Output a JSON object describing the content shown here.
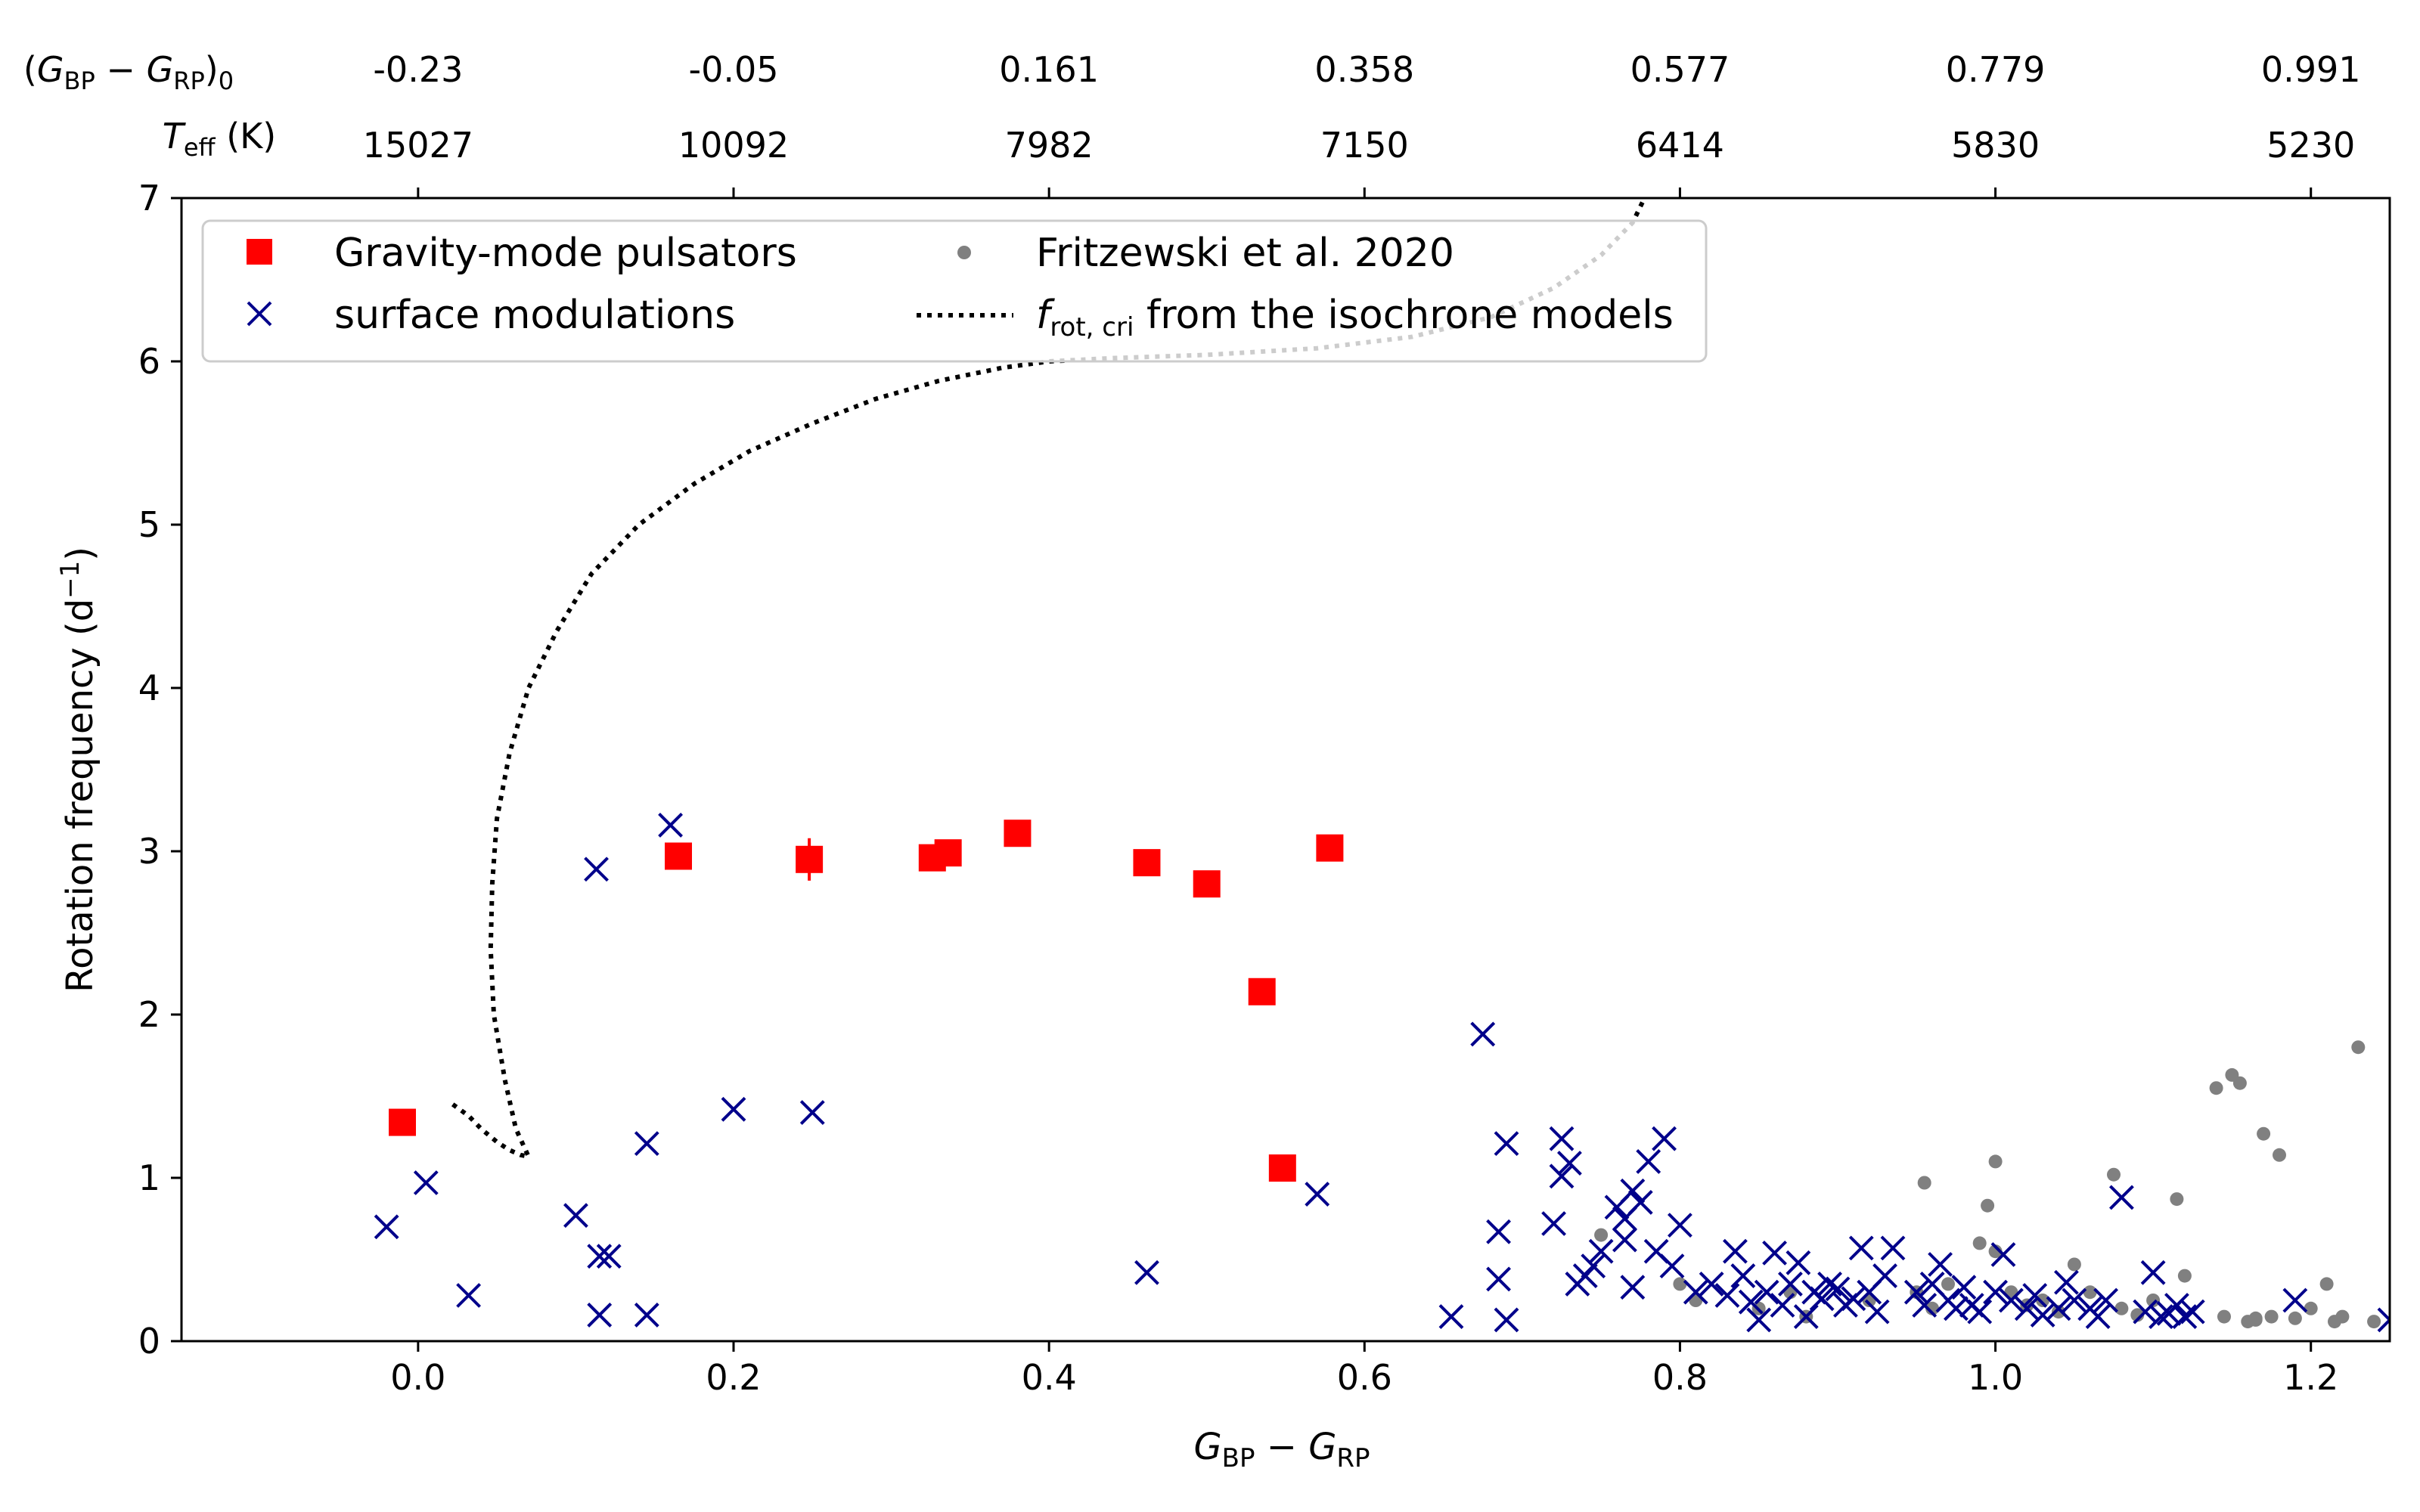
{
  "chart_data": {
    "type": "scatter",
    "xlabel": "G_BP − G_RP",
    "ylabel": "Rotation frequency (d⁻¹)",
    "xlim": [
      -0.15,
      1.25
    ],
    "ylim": [
      0,
      7
    ],
    "x_ticks": [
      0.0,
      0.2,
      0.4,
      0.6,
      0.8,
      1.0,
      1.2
    ],
    "x_tick_labels": [
      "0.0",
      "0.2",
      "0.4",
      "0.6",
      "0.8",
      "1.0",
      "1.2"
    ],
    "y_ticks": [
      0,
      1,
      2,
      3,
      4,
      5,
      6,
      7
    ],
    "y_tick_labels": [
      "0",
      "1",
      "2",
      "3",
      "4",
      "5",
      "6",
      "7"
    ],
    "top_axis": {
      "ticks": [
        0.0,
        0.2,
        0.4,
        0.6,
        0.8,
        1.0,
        1.2
      ],
      "color_row_label": "(G_BP − G_RP)₀",
      "color_row_labels": [
        "-0.23",
        "-0.05",
        "0.161",
        "0.358",
        "0.577",
        "0.779",
        "0.991"
      ],
      "teff_row_label": "T_eff (K)",
      "teff_row_labels": [
        "15027",
        "10092",
        "7982",
        "7150",
        "6414",
        "5830",
        "5230"
      ]
    },
    "legend": {
      "position": "upper-left",
      "entries": [
        {
          "label": "Gravity-mode pulsators",
          "marker": "square",
          "color": "#ff0000"
        },
        {
          "label": "surface modulations",
          "marker": "x",
          "color": "#00008b"
        },
        {
          "label": "Fritzewski et al. 2020",
          "marker": "dot",
          "color": "#808080"
        },
        {
          "label": "f_rot, cri from the isochrone models",
          "marker": "dotted-line",
          "color": "#000000"
        }
      ]
    },
    "series": [
      {
        "name": "Gravity-mode pulsators",
        "marker": "square",
        "color": "#ff0000",
        "x": [
          -0.01,
          0.165,
          0.248,
          0.326,
          0.336,
          0.38,
          0.462,
          0.5,
          0.535,
          0.548,
          0.578
        ],
        "y": [
          1.34,
          2.97,
          2.95,
          2.96,
          2.99,
          3.11,
          2.93,
          2.8,
          2.14,
          1.06,
          3.02
        ],
        "yerr": [
          0.04,
          0.04,
          0.13,
          0.05,
          0.04,
          0.04,
          0.05,
          0.04,
          0.04,
          0.04,
          0.04
        ]
      },
      {
        "name": "surface modulations",
        "marker": "x",
        "color": "#00008b",
        "x": [
          -0.02,
          0.005,
          0.032,
          0.1,
          0.113,
          0.115,
          0.115,
          0.121,
          0.145,
          0.145,
          0.16,
          0.2,
          0.25,
          0.462,
          0.57,
          0.655,
          0.675,
          0.685,
          0.685,
          0.69,
          0.69,
          0.72,
          0.725,
          0.725,
          0.73,
          0.735,
          0.74,
          0.745,
          0.75,
          0.76,
          0.765,
          0.765,
          0.77,
          0.77,
          0.775,
          0.78,
          0.785,
          0.79,
          0.795,
          0.8,
          0.81,
          0.82,
          0.83,
          0.835,
          0.84,
          0.845,
          0.85,
          0.855,
          0.86,
          0.865,
          0.87,
          0.875,
          0.88,
          0.885,
          0.89,
          0.895,
          0.9,
          0.905,
          0.91,
          0.915,
          0.92,
          0.925,
          0.93,
          0.935,
          0.95,
          0.955,
          0.96,
          0.965,
          0.97,
          0.975,
          0.98,
          0.985,
          0.99,
          1.0,
          1.005,
          1.01,
          1.02,
          1.025,
          1.03,
          1.04,
          1.045,
          1.05,
          1.06,
          1.065,
          1.07,
          1.08,
          1.095,
          1.1,
          1.105,
          1.11,
          1.115,
          1.12,
          1.125,
          1.19,
          1.25
        ],
        "y": [
          0.7,
          0.97,
          0.28,
          0.77,
          2.89,
          0.16,
          0.52,
          0.52,
          1.21,
          0.16,
          3.16,
          1.42,
          1.4,
          0.42,
          0.9,
          0.15,
          1.88,
          0.67,
          0.38,
          1.21,
          0.13,
          0.72,
          1.24,
          1.01,
          1.09,
          0.35,
          0.4,
          0.46,
          0.55,
          0.82,
          0.62,
          0.75,
          0.33,
          0.92,
          0.85,
          1.1,
          0.55,
          1.24,
          0.46,
          0.71,
          0.3,
          0.35,
          0.28,
          0.55,
          0.4,
          0.24,
          0.13,
          0.3,
          0.54,
          0.22,
          0.35,
          0.48,
          0.15,
          0.3,
          0.26,
          0.35,
          0.32,
          0.22,
          0.26,
          0.57,
          0.3,
          0.18,
          0.4,
          0.57,
          0.3,
          0.22,
          0.35,
          0.47,
          0.25,
          0.2,
          0.33,
          0.22,
          0.18,
          0.3,
          0.53,
          0.25,
          0.2,
          0.28,
          0.16,
          0.2,
          0.36,
          0.25,
          0.2,
          0.15,
          0.25,
          0.88,
          0.18,
          0.42,
          0.15,
          0.17,
          0.22,
          0.15,
          0.18,
          0.25,
          0.13
        ]
      },
      {
        "name": "Fritzewski et al. 2020",
        "marker": "dot",
        "color": "#808080",
        "x": [
          0.75,
          0.8,
          0.81,
          0.85,
          0.87,
          0.88,
          0.92,
          0.95,
          0.955,
          0.97,
          0.99,
          1.0,
          1.01,
          1.02,
          1.04,
          1.05,
          1.08,
          1.1,
          1.12,
          1.14,
          1.145,
          1.15,
          1.16,
          1.165,
          1.17,
          1.175,
          1.18,
          1.19,
          1.2,
          1.21,
          1.215,
          1.22,
          1.23,
          1.24,
          1.075,
          1.115,
          1.155,
          1.165,
          0.995,
          1.0,
          0.96,
          1.03,
          1.06,
          1.09
        ],
        "y": [
          0.65,
          0.35,
          0.25,
          0.2,
          0.3,
          0.15,
          0.25,
          0.3,
          0.97,
          0.35,
          0.6,
          0.55,
          0.3,
          0.22,
          0.18,
          0.47,
          0.2,
          0.25,
          0.4,
          1.55,
          0.15,
          1.63,
          0.12,
          0.13,
          1.27,
          0.15,
          1.14,
          0.14,
          0.2,
          0.35,
          0.12,
          0.15,
          1.8,
          0.12,
          1.02,
          0.87,
          1.58,
          0.14,
          0.83,
          1.1,
          0.2,
          0.25,
          0.3,
          0.16
        ]
      },
      {
        "name": "f_rot, cri from the isochrone models",
        "marker": "dotted-line",
        "color": "#000000",
        "x": [
          0.022,
          0.032,
          0.04,
          0.05,
          0.058,
          0.065,
          0.07,
          0.062,
          0.055,
          0.048,
          0.046,
          0.047,
          0.05,
          0.058,
          0.07,
          0.088,
          0.11,
          0.14,
          0.175,
          0.21,
          0.25,
          0.29,
          0.33,
          0.37,
          0.4,
          0.44,
          0.5,
          0.57,
          0.63,
          0.68,
          0.72,
          0.75,
          0.77,
          0.78
        ],
        "y": [
          1.45,
          1.38,
          1.3,
          1.22,
          1.17,
          1.14,
          1.13,
          1.3,
          1.6,
          2.0,
          2.4,
          2.8,
          3.2,
          3.6,
          4.0,
          4.35,
          4.7,
          5.0,
          5.25,
          5.45,
          5.62,
          5.77,
          5.88,
          5.96,
          6.0,
          6.02,
          6.04,
          6.08,
          6.15,
          6.27,
          6.45,
          6.65,
          6.85,
          7.05
        ]
      }
    ]
  }
}
